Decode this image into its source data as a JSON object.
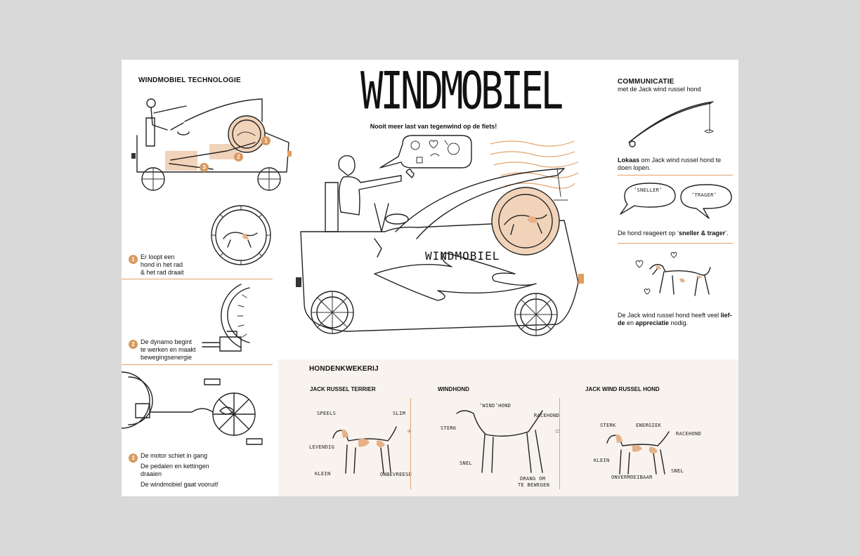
{
  "title": "WINDMOBIEL",
  "subtitle": "Nooit meer last van tegenwind op de fiets!",
  "car_label": "WINDMOBIEL",
  "technology": {
    "heading": "WINDMOBIEL TECHNOLOGIE",
    "markers": [
      "1",
      "2",
      "3"
    ],
    "step1": {
      "num": "1",
      "lines": [
        "Er loopt een",
        "hond in het rad",
        "& het rad draait"
      ]
    },
    "step2": {
      "num": "2",
      "lines": [
        "De dynamo begint",
        "te werken en maakt",
        "bewegingsenergie"
      ]
    },
    "step3": {
      "num": "3",
      "lines": [
        "De motor schiet in gang",
        "De pedalen en kettingen",
        "draaien",
        "De windmobiel gaat vooruit!"
      ]
    }
  },
  "communication": {
    "heading": "COMMUNICATIE",
    "subheading": "met de Jack wind russel hond",
    "bait_bold": "Lokaas",
    "bait_rest": " om Jack wind russel hond te",
    "bait_rest2": "doen lopen.",
    "bubble_left": "‘SNELLER’",
    "bubble_right": "‘TRAGER’",
    "react_pre": "De hond reageert op ‘",
    "react_bold": "sneller & trager",
    "react_post": "’.",
    "love_pre": "De Jack wind russel hond heeft veel ",
    "love_bold1": "lief-",
    "love_bold1b": "de",
    "love_mid": " en ",
    "love_bold2": "appreciatie",
    "love_post": " nodig."
  },
  "breeding": {
    "heading": "HONDENKWEKERIJ",
    "plus": "+",
    "equals": "=",
    "breeds": [
      {
        "name": "JACK RUSSEL TERRIER",
        "traits": [
          "SPEELS",
          "SLIM",
          "LEVENDIG",
          "KLEIN",
          "ONBEVREESD"
        ]
      },
      {
        "name": "WINDHOND",
        "traits": [
          "‘WIND’HOND",
          "RACEHOND",
          "STERK",
          "SNEL",
          "DRANG OM",
          "TE BEWEGEN"
        ]
      },
      {
        "name": "JACK WIND RUSSEL HOND",
        "traits": [
          "STERK",
          "ENERGIEK",
          "RACEHOND",
          "KLEIN",
          "SNEL",
          "ONVERMOEIBAAR"
        ]
      }
    ]
  },
  "colors": {
    "accent": "#d99a5f",
    "panel": "#f8f3ee",
    "background": "#d9d9d9",
    "ink": "#222222"
  }
}
